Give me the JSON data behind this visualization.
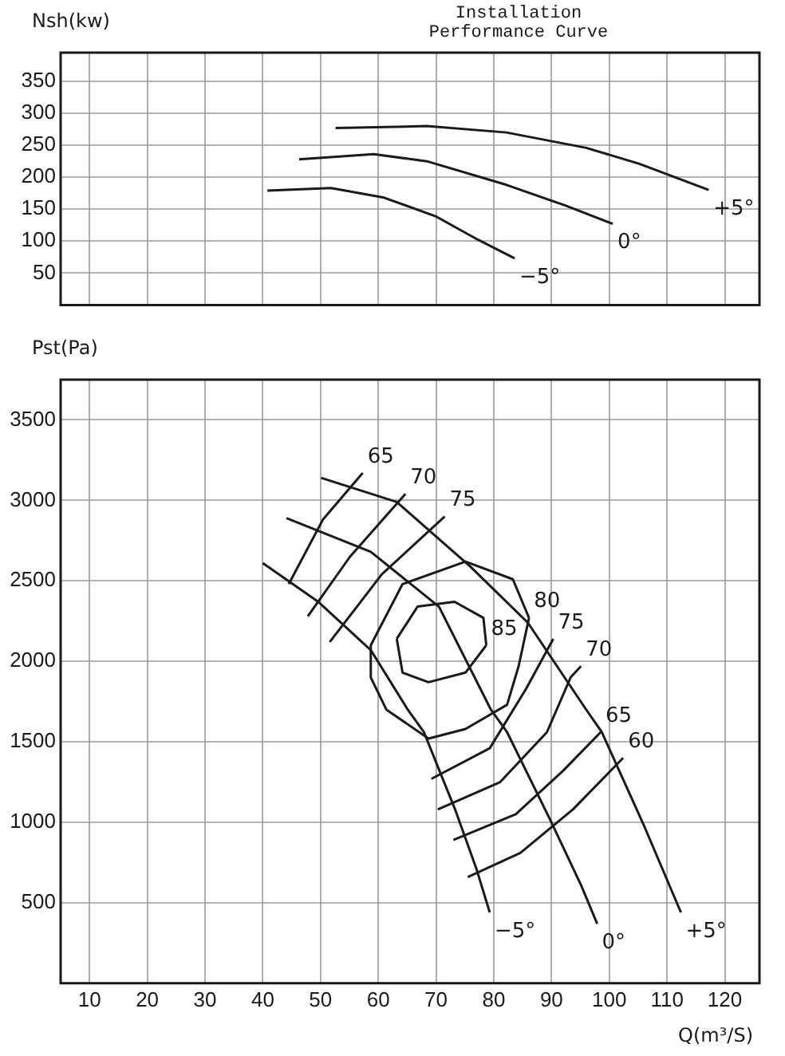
{
  "chart_data": [
    {
      "type": "line",
      "title": "Installation Performance Curve",
      "ylabel": "Nsh(kw)",
      "xlim": [
        5,
        126
      ],
      "ylim": [
        0,
        395
      ],
      "xticks": [
        10,
        20,
        30,
        40,
        50,
        60,
        70,
        80,
        90,
        100,
        110,
        120
      ],
      "yticks": [
        50,
        100,
        150,
        200,
        250,
        300,
        350
      ],
      "grid": true,
      "tick_labels": "y",
      "marker": "none",
      "line_style": "solid",
      "series": [
        {
          "name": "+5°",
          "color": "#1a1a1a",
          "x": [
            52.6,
            68.4,
            82.2,
            96,
            105.2,
            117.2
          ],
          "values": [
            277,
            280,
            270,
            246,
            221,
            180
          ]
        },
        {
          "name": "0°",
          "color": "#1a1a1a",
          "x": [
            46.3,
            59.2,
            68.4,
            82.2,
            92.3,
            100.6
          ],
          "values": [
            228,
            236,
            225,
            188,
            156,
            127
          ]
        },
        {
          "name": "−5°",
          "color": "#1a1a1a",
          "x": [
            40.8,
            51.8,
            61,
            69.9,
            77.3,
            83.6
          ],
          "values": [
            179,
            183,
            168,
            139,
            102,
            73
          ]
        }
      ]
    },
    {
      "type": "line",
      "ylabel": "Pst(Pa)",
      "xlabel": "Q(m³/S)",
      "xlim": [
        5,
        126
      ],
      "ylim": [
        0,
        3750
      ],
      "xticks": [
        10,
        20,
        30,
        40,
        50,
        60,
        70,
        80,
        90,
        100,
        110,
        120
      ],
      "yticks": [
        500,
        1000,
        1500,
        2000,
        2500,
        3000,
        3500
      ],
      "grid": true,
      "marker": "none",
      "line_style": "solid",
      "series": [
        {
          "name": "−5°",
          "color": "#1a1a1a",
          "x": [
            40,
            49.6,
            58.7,
            65.1,
            67.9,
            73.3,
            77,
            79.3
          ],
          "values": [
            2610,
            2370,
            2070,
            1700,
            1560,
            1080,
            710,
            440
          ]
        },
        {
          "name": "0°",
          "color": "#1a1a1a",
          "x": [
            44.1,
            58.7,
            70.5,
            79.5,
            82.3,
            89.7,
            95.1,
            97.9
          ],
          "values": [
            2890,
            2680,
            2340,
            1700,
            1560,
            1020,
            610,
            370
          ]
        },
        {
          "name": "+5°",
          "color": "#1a1a1a",
          "x": [
            50.1,
            63.2,
            75.9,
            85.9,
            96,
            98.7,
            106,
            112.4
          ],
          "values": [
            3140,
            2990,
            2590,
            2240,
            1700,
            1560,
            980,
            440
          ]
        },
        {
          "name": "65",
          "color": "#1a1a1a",
          "x": [
            44.5,
            50.4,
            57.3
          ],
          "values": [
            2480,
            2880,
            3170
          ]
        },
        {
          "name": "70",
          "color": "#1a1a1a",
          "x": [
            47.8,
            55.1,
            64.7
          ],
          "values": [
            2280,
            2650,
            3040
          ]
        },
        {
          "name": "75",
          "color": "#1a1a1a",
          "x": [
            51.6,
            60.6,
            71.5
          ],
          "values": [
            2120,
            2540,
            2900
          ]
        },
        {
          "color": "#1a1a1a",
          "x": [
            58.7,
            64.2,
            75.1,
            83.3,
            86.1
          ],
          "values": [
            2100,
            2480,
            2620,
            2510,
            2270
          ]
        },
        {
          "name": "80",
          "color": "#1a1a1a",
          "x": [
            58.7,
            58.7,
            61.4,
            68.7,
            75.1,
            82.3,
            84.3,
            86.1
          ],
          "values": [
            2100,
            1900,
            1700,
            1520,
            1580,
            1730,
            1970,
            2270
          ]
        },
        {
          "color": "#1a1a1a",
          "x": [
            63.2,
            66.8,
            73.2,
            78.2,
            78.7
          ],
          "values": [
            2140,
            2340,
            2370,
            2270,
            2100
          ]
        },
        {
          "name": "85",
          "color": "#1a1a1a",
          "x": [
            63.2,
            64.2,
            68.7,
            75.1,
            78.7
          ],
          "values": [
            2140,
            1930,
            1870,
            1930,
            2100
          ]
        },
        {
          "name": "75",
          "color": "#1a1a1a",
          "x": [
            69.2,
            79.3,
            85.6,
            90.3
          ],
          "values": [
            1270,
            1460,
            1830,
            2140
          ]
        },
        {
          "name": "70",
          "color": "#1a1a1a",
          "x": [
            70.3,
            81.1,
            89.2,
            93.3,
            95.1
          ],
          "values": [
            1080,
            1250,
            1560,
            1900,
            1970
          ]
        },
        {
          "name": "65",
          "color": "#1a1a1a",
          "x": [
            73,
            83.8,
            92,
            98.5
          ],
          "values": [
            890,
            1050,
            1320,
            1560
          ]
        },
        {
          "name": "60",
          "color": "#1a1a1a",
          "x": [
            75.5,
            84.6,
            93.7,
            102.4
          ],
          "values": [
            660,
            810,
            1080,
            1400
          ]
        }
      ]
    }
  ]
}
